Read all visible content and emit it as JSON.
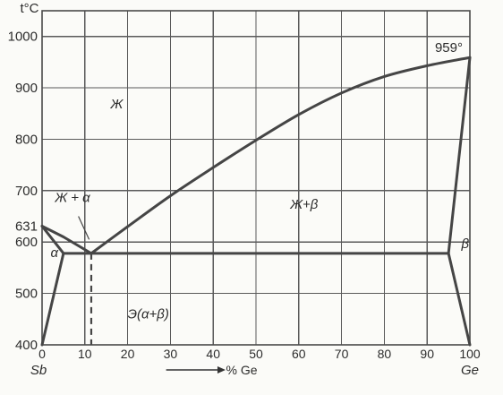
{
  "chart_data": {
    "type": "phase-diagram",
    "y_axis": {
      "label": "t°C",
      "range": [
        400,
        1050
      ],
      "ticks": [
        400,
        500,
        600,
        700,
        800,
        900,
        1000
      ],
      "extra_ticks": [
        {
          "value": 631,
          "label": "631"
        }
      ]
    },
    "x_axis": {
      "label": "% Ge",
      "range": [
        0,
        100
      ],
      "ticks": [
        0,
        10,
        20,
        30,
        40,
        50,
        60,
        70,
        80,
        90,
        100
      ],
      "left_component": "Sb",
      "right_component": "Ge"
    },
    "grid": true,
    "eutectic": {
      "x": 11.5,
      "t": 578
    },
    "curves": {
      "liquidus_sb": [
        [
          0,
          631
        ],
        [
          5,
          610
        ],
        [
          11.5,
          578
        ]
      ],
      "liquidus_ge": [
        [
          11.5,
          578
        ],
        [
          20,
          630
        ],
        [
          30,
          690
        ],
        [
          40,
          745
        ],
        [
          50,
          798
        ],
        [
          60,
          848
        ],
        [
          70,
          890
        ],
        [
          80,
          922
        ],
        [
          90,
          943
        ],
        [
          100,
          959
        ]
      ],
      "solvus_alpha": [
        [
          0,
          400
        ],
        [
          5,
          578
        ],
        [
          0,
          631
        ]
      ],
      "solvus_beta": [
        [
          100,
          400
        ],
        [
          95,
          578
        ],
        [
          100,
          959
        ]
      ],
      "eutectic_line": [
        [
          5,
          578
        ],
        [
          95,
          578
        ]
      ]
    },
    "points": [
      {
        "x": 100,
        "t": 959,
        "label": "959°"
      }
    ],
    "regions": [
      {
        "label": "Ж",
        "x": 16,
        "t": 860
      },
      {
        "label": "Ж + α",
        "x": 3,
        "t": 678
      },
      {
        "label": "Ж+β",
        "x": 58,
        "t": 665
      },
      {
        "label": "α",
        "x": 2,
        "t": 571
      },
      {
        "label": "β",
        "x": 98,
        "t": 588
      },
      {
        "label": "Э(α+β)",
        "x": 20,
        "t": 451
      }
    ],
    "x_unit_arrow_label": "% Ge"
  }
}
